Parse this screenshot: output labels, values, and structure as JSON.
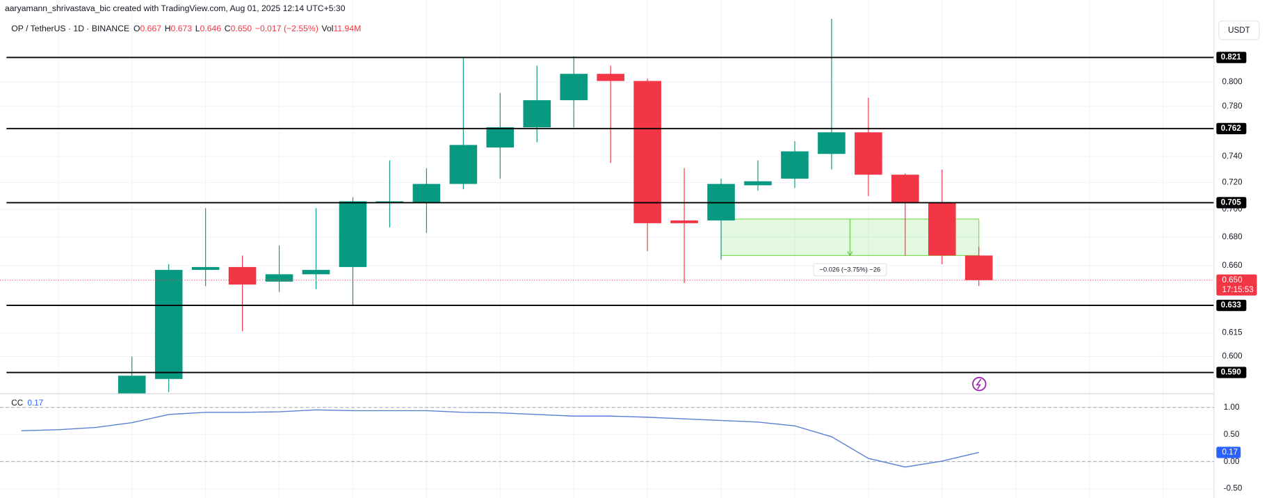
{
  "header": {
    "credit": "aaryamann_shrivastava_bic created with TradingView.com, Aug 01, 2025 12:14 UTC+5:30",
    "currency_button": "USDT"
  },
  "chart_data": [
    {
      "type": "candlestick",
      "title": "OP / TetherUS · 1D · BINANCE",
      "legend": {
        "open_label": "O",
        "open": 0.667,
        "high_label": "H",
        "high": 0.673,
        "low_label": "L",
        "low": 0.646,
        "close_label": "C",
        "close": {
          "value": 0.65,
          "label": "0.650"
        },
        "change": "−0.017 (−2.55%)",
        "volume_label": "Vol",
        "volume": "11.94M"
      },
      "categories": [
        null,
        null,
        null,
        null,
        null,
        null,
        null,
        null,
        null,
        null,
        null,
        null,
        null,
        null,
        null,
        null,
        null,
        null,
        null,
        null,
        null,
        null,
        null,
        null
      ],
      "open": [
        0.577,
        0.586,
        0.657,
        0.659,
        0.649,
        0.654,
        0.659,
        0.705,
        0.705,
        0.719,
        0.747,
        0.763,
        0.785,
        0.807,
        0.801,
        0.692,
        0.692,
        0.718,
        0.723,
        0.742,
        0.759,
        0.726,
        0.705,
        0.667
      ],
      "high": [
        0.6,
        0.661,
        0.701,
        0.667,
        0.674,
        0.701,
        0.709,
        0.737,
        0.731,
        0.821,
        0.791,
        0.814,
        0.822,
        0.814,
        0.803,
        0.731,
        0.723,
        0.737,
        0.752,
        0.855,
        0.787,
        0.727,
        0.73,
        0.673
      ],
      "low": [
        0.577,
        0.578,
        0.646,
        0.616,
        0.642,
        0.644,
        0.633,
        0.687,
        0.683,
        0.715,
        0.723,
        0.751,
        0.763,
        0.735,
        0.67,
        0.648,
        0.664,
        0.714,
        0.716,
        0.73,
        0.71,
        0.667,
        0.661,
        0.646
      ],
      "close": [
        0.588,
        0.657,
        0.659,
        0.647,
        0.654,
        0.657,
        0.706,
        0.706,
        0.719,
        0.749,
        0.763,
        0.785,
        0.807,
        0.801,
        0.69,
        0.69,
        0.719,
        0.721,
        0.744,
        0.759,
        0.726,
        0.705,
        0.667,
        0.65
      ],
      "up_color": "#089981",
      "down_color": "#f23645",
      "log_scale": true,
      "grid": true,
      "ylim": [
        0.577,
        0.872
      ],
      "yticks": [
        {
          "value": 0.8,
          "label": "0.800"
        },
        {
          "value": 0.78,
          "label": "0.780"
        },
        {
          "value": 0.74,
          "label": "0.740"
        },
        {
          "value": 0.72,
          "label": "0.720"
        },
        {
          "value": 0.7,
          "label": "0.700"
        },
        {
          "value": 0.68,
          "label": "0.680"
        },
        {
          "value": 0.66,
          "label": "0.660"
        },
        0.615,
        {
          "value": 0.6,
          "label": "0.600"
        }
      ],
      "levels": [
        0.821,
        0.762,
        0.705,
        0.633,
        {
          "value": 0.59,
          "label": "0.590"
        }
      ],
      "last_price": {
        "value": 0.65,
        "label": "0.650"
      },
      "countdown": "17:15:53",
      "measure": {
        "x": [
          16,
          23
        ],
        "top": 0.693,
        "bottom": 0.667,
        "label": "−0.026 (−3.75%) −26"
      }
    },
    {
      "type": "line",
      "x": [
        -3,
        -2,
        -1,
        0,
        1,
        2,
        3,
        4,
        5,
        6,
        7,
        8,
        9,
        10,
        11,
        12,
        13,
        14,
        15,
        16,
        17,
        18,
        19,
        20,
        21,
        22,
        23
      ],
      "series": [
        {
          "name": "CC",
          "color": "#5b7fd4",
          "values": [
            0.57,
            0.59,
            0.63,
            0.72,
            0.87,
            0.91,
            0.91,
            0.92,
            0.955,
            0.94,
            0.94,
            0.94,
            0.91,
            0.9,
            0.87,
            0.84,
            0.84,
            0.82,
            0.79,
            0.76,
            0.73,
            0.66,
            0.46,
            0.06,
            -0.1,
            0.01,
            0.17
          ]
        }
      ],
      "last_value": {
        "value": 0.17,
        "label": "0.17"
      },
      "ylim": [
        -0.672,
        1.254
      ],
      "yticks": [
        {
          "value": 1,
          "label": "1.00"
        },
        {
          "value": 0.5,
          "label": "0.50"
        },
        {
          "value": 0,
          "label": "0.00"
        },
        {
          "value": -0.5,
          "label": "-0.50"
        }
      ],
      "levels": [
        1,
        0
      ]
    }
  ]
}
